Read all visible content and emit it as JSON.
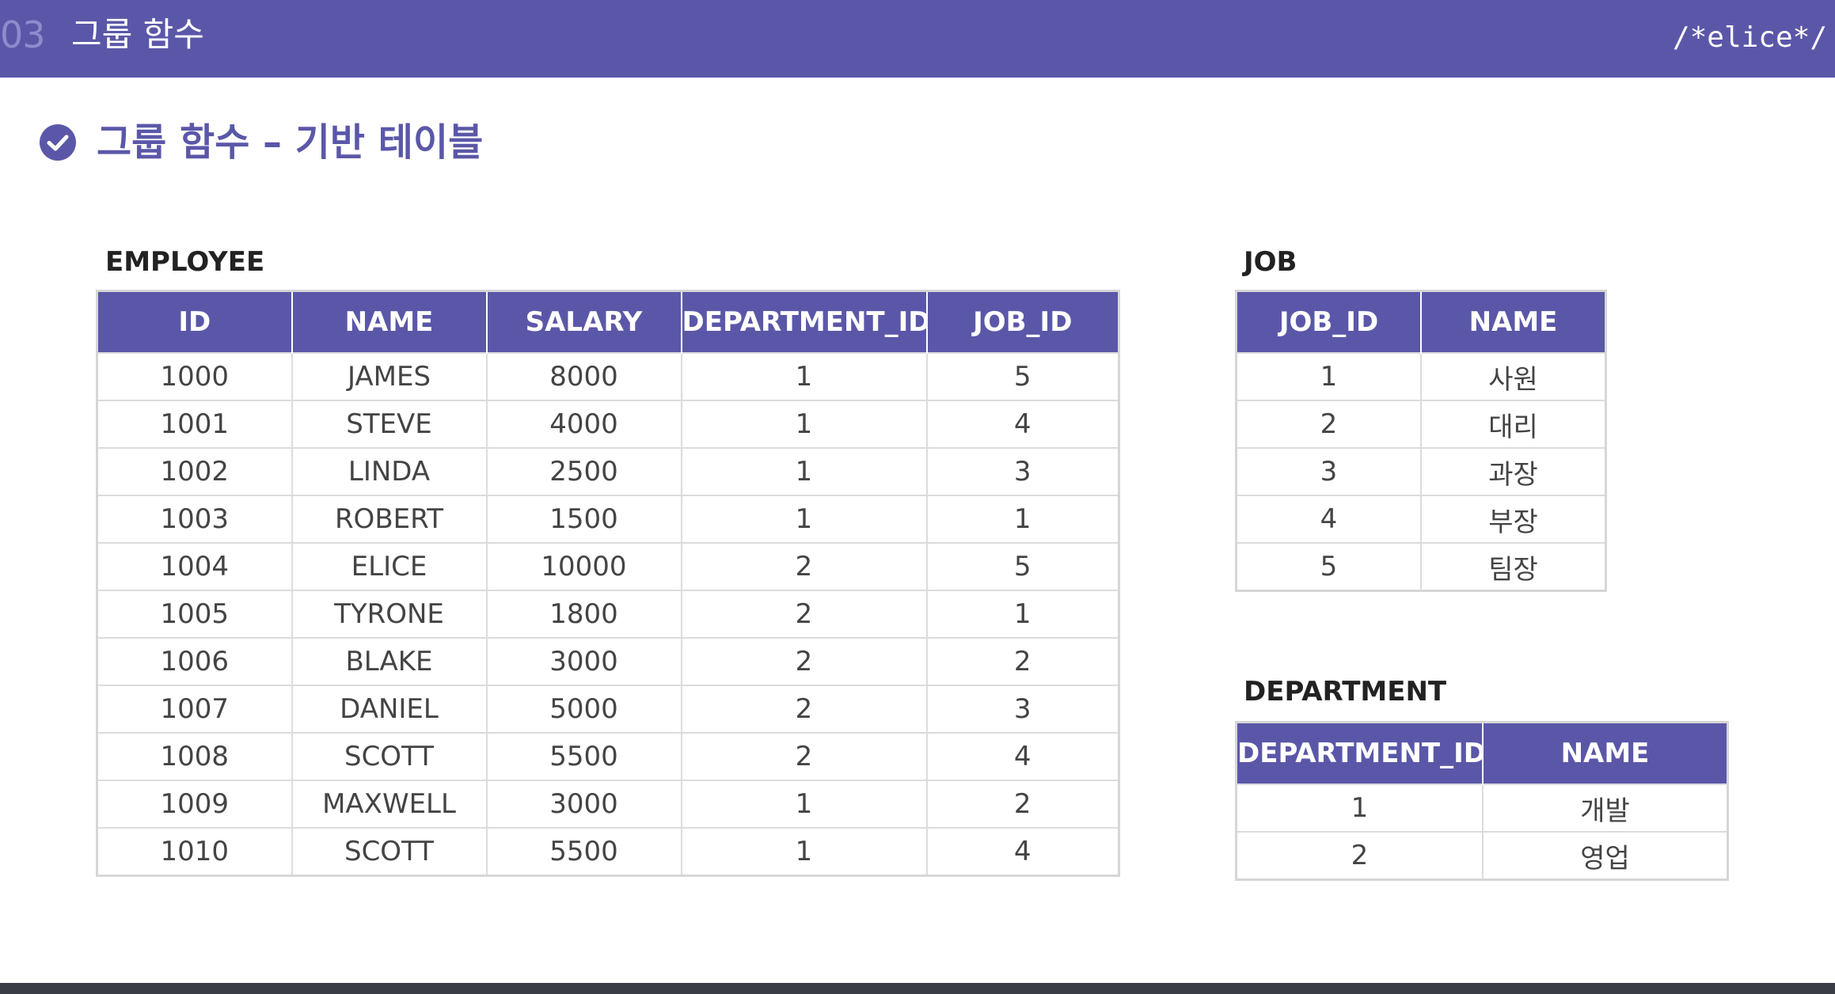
{
  "header": {
    "section_number": "03",
    "section_title": "그룹 함수",
    "brand": "/*elice*/"
  },
  "page": {
    "title": "그룹 함수 – 기반 테이블"
  },
  "colors": {
    "accent": "#5b57a8",
    "accent_faded": "#8e8ccc",
    "bottom_bar": "#3a3d46"
  },
  "employee": {
    "label": "EMPLOYEE",
    "columns": [
      "ID",
      "NAME",
      "SALARY",
      "DEPARTMENT_ID",
      "JOB_ID"
    ],
    "rows": [
      [
        "1000",
        "JAMES",
        "8000",
        "1",
        "5"
      ],
      [
        "1001",
        "STEVE",
        "4000",
        "1",
        "4"
      ],
      [
        "1002",
        "LINDA",
        "2500",
        "1",
        "3"
      ],
      [
        "1003",
        "ROBERT",
        "1500",
        "1",
        "1"
      ],
      [
        "1004",
        "ELICE",
        "10000",
        "2",
        "5"
      ],
      [
        "1005",
        "TYRONE",
        "1800",
        "2",
        "1"
      ],
      [
        "1006",
        "BLAKE",
        "3000",
        "2",
        "2"
      ],
      [
        "1007",
        "DANIEL",
        "5000",
        "2",
        "3"
      ],
      [
        "1008",
        "SCOTT",
        "5500",
        "2",
        "4"
      ],
      [
        "1009",
        "MAXWELL",
        "3000",
        "1",
        "2"
      ],
      [
        "1010",
        "SCOTT",
        "5500",
        "1",
        "4"
      ]
    ]
  },
  "job": {
    "label": "JOB",
    "columns": [
      "JOB_ID",
      "NAME"
    ],
    "rows": [
      [
        "1",
        "사원"
      ],
      [
        "2",
        "대리"
      ],
      [
        "3",
        "과장"
      ],
      [
        "4",
        "부장"
      ],
      [
        "5",
        "팀장"
      ]
    ]
  },
  "department": {
    "label": "DEPARTMENT",
    "columns": [
      "DEPARTMENT_ID",
      "NAME"
    ],
    "rows": [
      [
        "1",
        "개발"
      ],
      [
        "2",
        "영업"
      ]
    ]
  }
}
